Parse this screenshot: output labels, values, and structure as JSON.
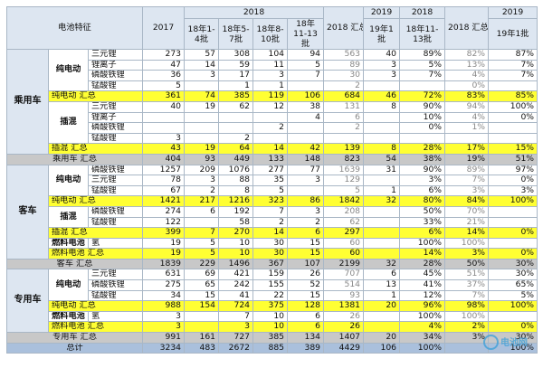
{
  "header": {
    "feature": "电池特征",
    "y2017": "2017",
    "y2018": "2018",
    "b1": "18年1-4批",
    "b2": "18年5-7批",
    "b3": "18年8-10批",
    "b4": "18年11-13批",
    "sum2018": "2018 汇总",
    "y2019a": "2019",
    "b19": "19年1批",
    "y2018b": "2018",
    "b1113": "18年11-13批",
    "sum2018b": "2018 汇总",
    "y2019b": "2019",
    "b19b": "19年1批"
  },
  "groups": {
    "passenger": "乘用车",
    "bus": "客车",
    "special": "专用车"
  },
  "subs": {
    "pure": "纯电动",
    "phev": "插混",
    "fcv": "燃料电池"
  },
  "rows": [
    {
      "l": "三元锂",
      "v": [
        "273",
        "57",
        "308",
        "104",
        "94",
        "563",
        "40",
        "89%",
        "82%",
        "87%"
      ]
    },
    {
      "l": "锂离子",
      "v": [
        "47",
        "14",
        "59",
        "11",
        "5",
        "89",
        "3",
        "5%",
        "13%",
        "7%"
      ]
    },
    {
      "l": "磷酸铁锂",
      "v": [
        "36",
        "3",
        "17",
        "3",
        "7",
        "30",
        "3",
        "7%",
        "4%",
        "7%"
      ]
    },
    {
      "l": "锰酸锂",
      "v": [
        "5",
        "",
        "1",
        "1",
        "",
        "2",
        "",
        "",
        "0%",
        ""
      ]
    },
    {
      "l": "纯电动 汇总",
      "v": [
        "361",
        "74",
        "385",
        "119",
        "106",
        "684",
        "46",
        "72%",
        "83%",
        "85%"
      ]
    },
    {
      "l": "三元锂",
      "v": [
        "40",
        "19",
        "62",
        "12",
        "38",
        "131",
        "8",
        "90%",
        "94%",
        "100%"
      ]
    },
    {
      "l": "锂离子",
      "v": [
        "",
        "",
        "",
        "",
        "4",
        "6",
        "",
        "10%",
        "4%",
        "0%"
      ]
    },
    {
      "l": "磷酸铁锂",
      "v": [
        "",
        "",
        "",
        "2",
        "",
        "2",
        "",
        "0%",
        "1%",
        ""
      ]
    },
    {
      "l": "锰酸锂",
      "v": [
        "3",
        "",
        "2",
        "",
        "",
        "",
        "",
        "",
        "",
        ""
      ]
    },
    {
      "l": "插混 汇总",
      "v": [
        "43",
        "19",
        "64",
        "14",
        "42",
        "139",
        "8",
        "28%",
        "17%",
        "15%"
      ]
    },
    {
      "l": "乘用车 汇总",
      "v": [
        "404",
        "93",
        "449",
        "133",
        "148",
        "823",
        "54",
        "38%",
        "19%",
        "51%"
      ]
    },
    {
      "l": "磷酸铁锂",
      "v": [
        "1257",
        "209",
        "1076",
        "277",
        "77",
        "1639",
        "31",
        "90%",
        "89%",
        "97%"
      ]
    },
    {
      "l": "三元锂",
      "v": [
        "78",
        "3",
        "88",
        "35",
        "3",
        "129",
        "",
        "3%",
        "7%",
        "0%"
      ]
    },
    {
      "l": "锰酸锂",
      "v": [
        "67",
        "2",
        "8",
        "5",
        "",
        "5",
        "1",
        "6%",
        "3%",
        "3%"
      ]
    },
    {
      "l": "纯电动 汇总",
      "v": [
        "1421",
        "217",
        "1216",
        "323",
        "86",
        "1842",
        "32",
        "80%",
        "84%",
        "100%"
      ]
    },
    {
      "l": "磷酸铁锂",
      "v": [
        "274",
        "6",
        "192",
        "7",
        "3",
        "208",
        "",
        "50%",
        "70%",
        ""
      ]
    },
    {
      "l": "锰酸锂",
      "v": [
        "122",
        "",
        "58",
        "2",
        "2",
        "62",
        "",
        "33%",
        "21%",
        ""
      ]
    },
    {
      "l": "插混 汇总",
      "v": [
        "399",
        "7",
        "270",
        "14",
        "6",
        "297",
        "",
        "6%",
        "14%",
        "0%"
      ]
    },
    {
      "l": "氢",
      "v": [
        "19",
        "5",
        "10",
        "30",
        "15",
        "60",
        "",
        "100%",
        "100%",
        ""
      ]
    },
    {
      "l": "燃料电池 汇总",
      "v": [
        "19",
        "5",
        "10",
        "30",
        "15",
        "60",
        "",
        "14%",
        "3%",
        "0%"
      ]
    },
    {
      "l": "客车 汇总",
      "v": [
        "1839",
        "229",
        "1496",
        "367",
        "107",
        "2199",
        "32",
        "28%",
        "50%",
        "30%"
      ]
    },
    {
      "l": "三元锂",
      "v": [
        "631",
        "69",
        "421",
        "159",
        "26",
        "707",
        "6",
        "45%",
        "51%",
        "30%"
      ]
    },
    {
      "l": "磷酸铁锂",
      "v": [
        "275",
        "65",
        "242",
        "155",
        "52",
        "514",
        "13",
        "41%",
        "37%",
        "65%"
      ]
    },
    {
      "l": "锰酸锂",
      "v": [
        "34",
        "15",
        "41",
        "22",
        "15",
        "93",
        "1",
        "12%",
        "7%",
        "5%"
      ]
    },
    {
      "l": "纯电动 汇总",
      "v": [
        "988",
        "154",
        "724",
        "375",
        "128",
        "1381",
        "20",
        "96%",
        "98%",
        "100%"
      ]
    },
    {
      "l": "氢",
      "v": [
        "3",
        "",
        "7",
        "10",
        "6",
        "26",
        "",
        "100%",
        "100%",
        ""
      ]
    },
    {
      "l": "燃料电池 汇总",
      "v": [
        "3",
        "",
        "3",
        "10",
        "6",
        "26",
        "",
        "4%",
        "2%",
        "0%"
      ]
    },
    {
      "l": "专用车 汇总",
      "v": [
        "991",
        "161",
        "727",
        "385",
        "134",
        "1407",
        "20",
        "34%",
        "3%",
        "30%"
      ]
    },
    {
      "l": "总计",
      "v": [
        "3234",
        "483",
        "2672",
        "885",
        "389",
        "4429",
        "106",
        "100%",
        "",
        "100%"
      ]
    }
  ],
  "watermark": "电池网"
}
